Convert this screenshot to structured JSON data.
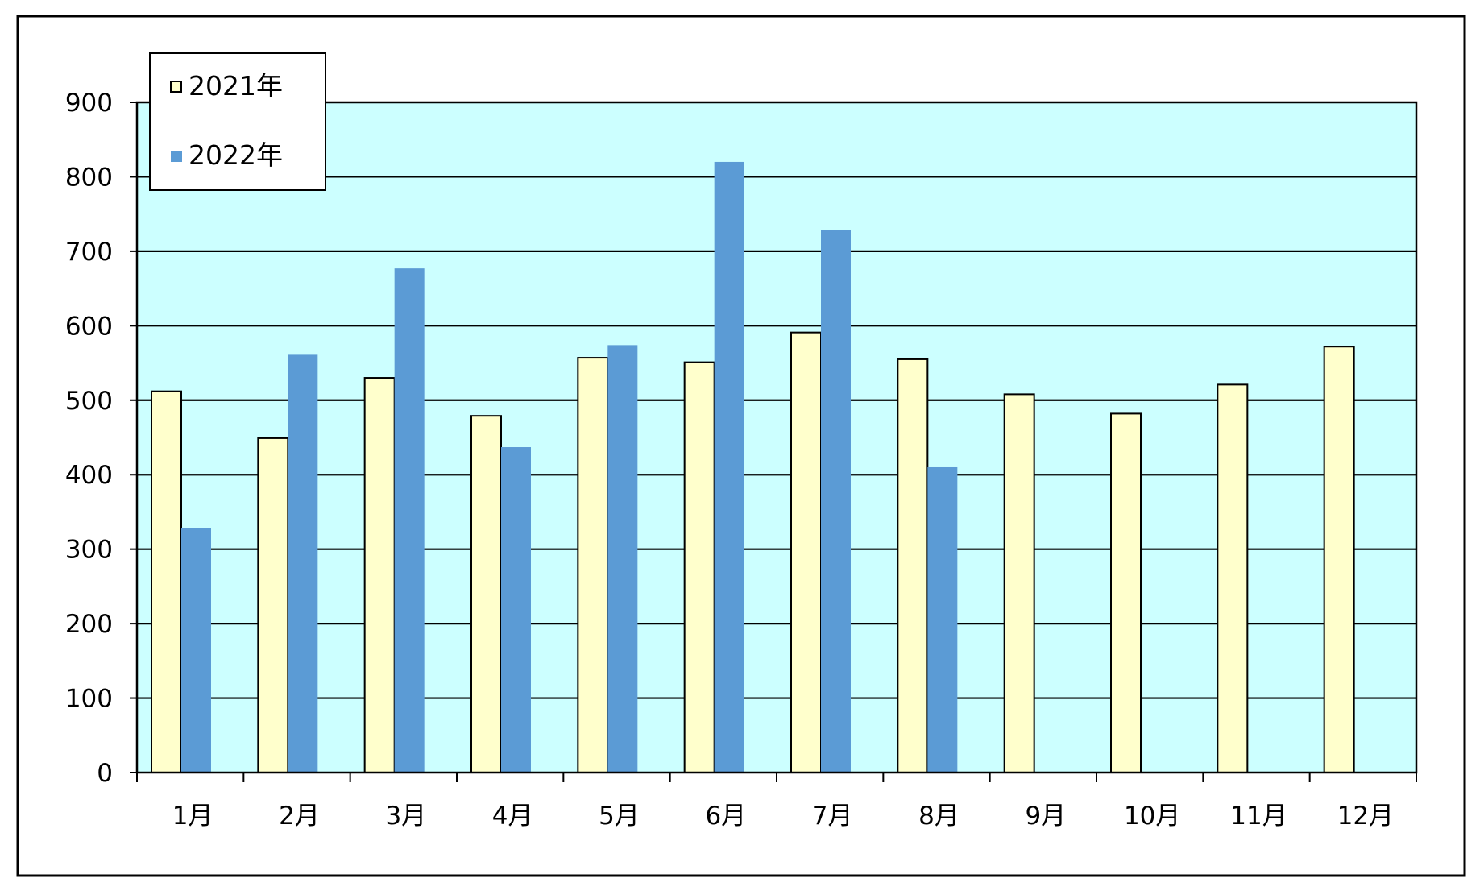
{
  "chart_data": {
    "type": "bar",
    "categories": [
      "1月",
      "2月",
      "3月",
      "4月",
      "5月",
      "6月",
      "7月",
      "8月",
      "9月",
      "10月",
      "11月",
      "12月"
    ],
    "series": [
      {
        "name": "2021年",
        "values": [
          512,
          449,
          530,
          479,
          557,
          551,
          591,
          555,
          508,
          482,
          521,
          572
        ],
        "color": "#ffffcc"
      },
      {
        "name": "2022年",
        "values": [
          328,
          561,
          677,
          437,
          574,
          820,
          729,
          410,
          null,
          null,
          null,
          null
        ],
        "color": "#5b9bd5"
      }
    ],
    "yticks": [
      "0",
      "100",
      "200",
      "300",
      "400",
      "500",
      "600",
      "700",
      "800",
      "900"
    ],
    "ylim": [
      0,
      900
    ],
    "grid": true,
    "legend_position": "top-left",
    "plot_background": "#ccffff",
    "title": "",
    "xlabel": "",
    "ylabel": ""
  }
}
